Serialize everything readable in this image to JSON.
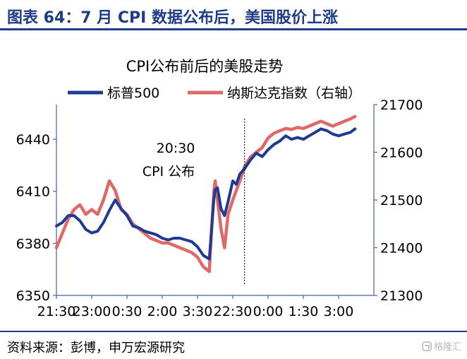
{
  "header": {
    "title": "图表 64：7 月 CPI 数据公布后，美国股价上涨"
  },
  "footer": {
    "source": "资料来源：彭博，申万宏源研究",
    "watermark": "格隆汇"
  },
  "colors": {
    "header": "#1f3c88",
    "sp500": "#1f3a93",
    "nasdaq": "#e06868",
    "axis": "#4a5fa8"
  },
  "chart_data": {
    "type": "line",
    "title": "CPI公布前后的美股走势",
    "annotation": {
      "time": "20:30",
      "text": "CPI 公布",
      "x": 16
    },
    "x_tick_labels": [
      "21:30",
      "23:00",
      "0:30",
      "2:00",
      "3:30",
      "22:30",
      "0:00",
      "1:30",
      "3:00"
    ],
    "x_tick_positions": [
      0,
      3,
      6,
      9,
      12,
      15,
      18,
      21,
      24
    ],
    "x_range": [
      0,
      27
    ],
    "left_axis": {
      "ylim": [
        6350,
        6460
      ],
      "ticks": [
        6350,
        6380,
        6410,
        6440
      ]
    },
    "right_axis": {
      "ylim": [
        21300,
        21700
      ],
      "ticks": [
        21300,
        21400,
        21500,
        21600,
        21700
      ]
    },
    "series": [
      {
        "name": "标普500",
        "axis": "left",
        "x": [
          0,
          0.5,
          1,
          1.5,
          2,
          2.5,
          3,
          3.5,
          4,
          4.5,
          5,
          5.5,
          6,
          6.5,
          7,
          7.5,
          8,
          8.5,
          9,
          9.5,
          10,
          10.5,
          11,
          11.5,
          12,
          12.5,
          13,
          13.4,
          13.5,
          13.7,
          14,
          14.3,
          14.6,
          15,
          15.3,
          15.6,
          16,
          16.5,
          17,
          17.5,
          18,
          18.5,
          19,
          19.5,
          20,
          20.5,
          21,
          21.5,
          22,
          22.5,
          23,
          23.5,
          24,
          24.5,
          25,
          25.4
        ],
        "values": [
          6390,
          6392,
          6396,
          6396,
          6393,
          6388,
          6386,
          6387,
          6392,
          6399,
          6405,
          6400,
          6396,
          6390,
          6389,
          6387,
          6386,
          6385,
          6383,
          6382,
          6383,
          6383,
          6382,
          6381,
          6378,
          6373,
          6371,
          6406,
          6411,
          6412,
          6400,
          6396,
          6404,
          6416,
          6414,
          6420,
          6423,
          6428,
          6432,
          6430,
          6434,
          6437,
          6439,
          6442,
          6440,
          6441,
          6440,
          6442,
          6444,
          6446,
          6445,
          6443,
          6442,
          6443,
          6444,
          6446
        ]
      },
      {
        "name": "纳斯达克指数（右轴）",
        "axis": "right",
        "x": [
          0,
          0.5,
          1,
          1.5,
          2,
          2.5,
          3,
          3.5,
          4,
          4.5,
          5,
          5.5,
          6,
          6.5,
          7,
          7.5,
          8,
          8.5,
          9,
          9.5,
          10,
          10.5,
          11,
          11.5,
          12,
          12.5,
          13,
          13.2,
          13.4,
          13.5,
          13.7,
          14,
          14.3,
          14.6,
          15,
          15.3,
          15.6,
          16,
          16.5,
          17,
          17.5,
          18,
          18.5,
          19,
          19.5,
          20,
          20.5,
          21,
          21.5,
          22,
          22.5,
          23,
          23.5,
          24,
          24.5,
          25,
          25.4
        ],
        "values": [
          21400,
          21430,
          21460,
          21480,
          21490,
          21470,
          21480,
          21470,
          21500,
          21540,
          21520,
          21480,
          21470,
          21450,
          21440,
          21430,
          21420,
          21415,
          21410,
          21410,
          21405,
          21400,
          21395,
          21390,
          21380,
          21360,
          21350,
          21440,
          21520,
          21540,
          21500,
          21440,
          21400,
          21470,
          21500,
          21520,
          21540,
          21570,
          21590,
          21600,
          21610,
          21630,
          21640,
          21645,
          21650,
          21648,
          21652,
          21650,
          21655,
          21660,
          21665,
          21660,
          21655,
          21660,
          21665,
          21670,
          21675
        ]
      }
    ]
  }
}
